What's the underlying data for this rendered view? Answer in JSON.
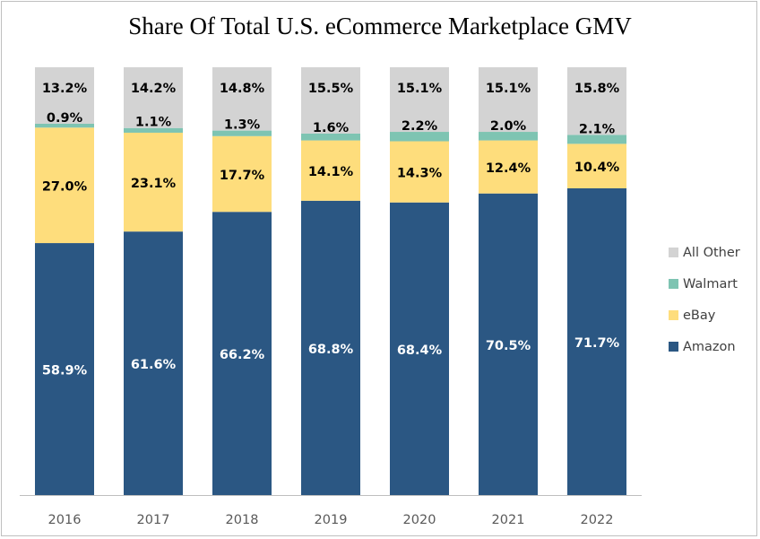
{
  "chart_data": {
    "type": "bar",
    "stacked": true,
    "title": "Share Of Total U.S. eCommerce Marketplace GMV",
    "categories": [
      "2016",
      "2017",
      "2018",
      "2019",
      "2020",
      "2021",
      "2022"
    ],
    "series": [
      {
        "name": "Amazon",
        "color": "#2b5783",
        "values": [
          58.9,
          61.6,
          66.2,
          68.8,
          68.4,
          70.5,
          71.7
        ]
      },
      {
        "name": "eBay",
        "color": "#fedd7c",
        "values": [
          27.0,
          23.1,
          17.7,
          14.1,
          14.3,
          12.4,
          10.4
        ]
      },
      {
        "name": "Walmart",
        "color": "#7ec4b2",
        "values": [
          0.9,
          1.1,
          1.3,
          1.6,
          2.2,
          2.0,
          2.1
        ]
      },
      {
        "name": "All Other",
        "color": "#d3d3d3",
        "values": [
          13.2,
          14.2,
          14.8,
          15.5,
          15.1,
          15.1,
          15.8
        ]
      }
    ],
    "ylim": [
      0,
      100
    ],
    "value_format": "percent, 1 decimal",
    "legend": "right",
    "grid": false,
    "xlabel": "",
    "ylabel": ""
  }
}
